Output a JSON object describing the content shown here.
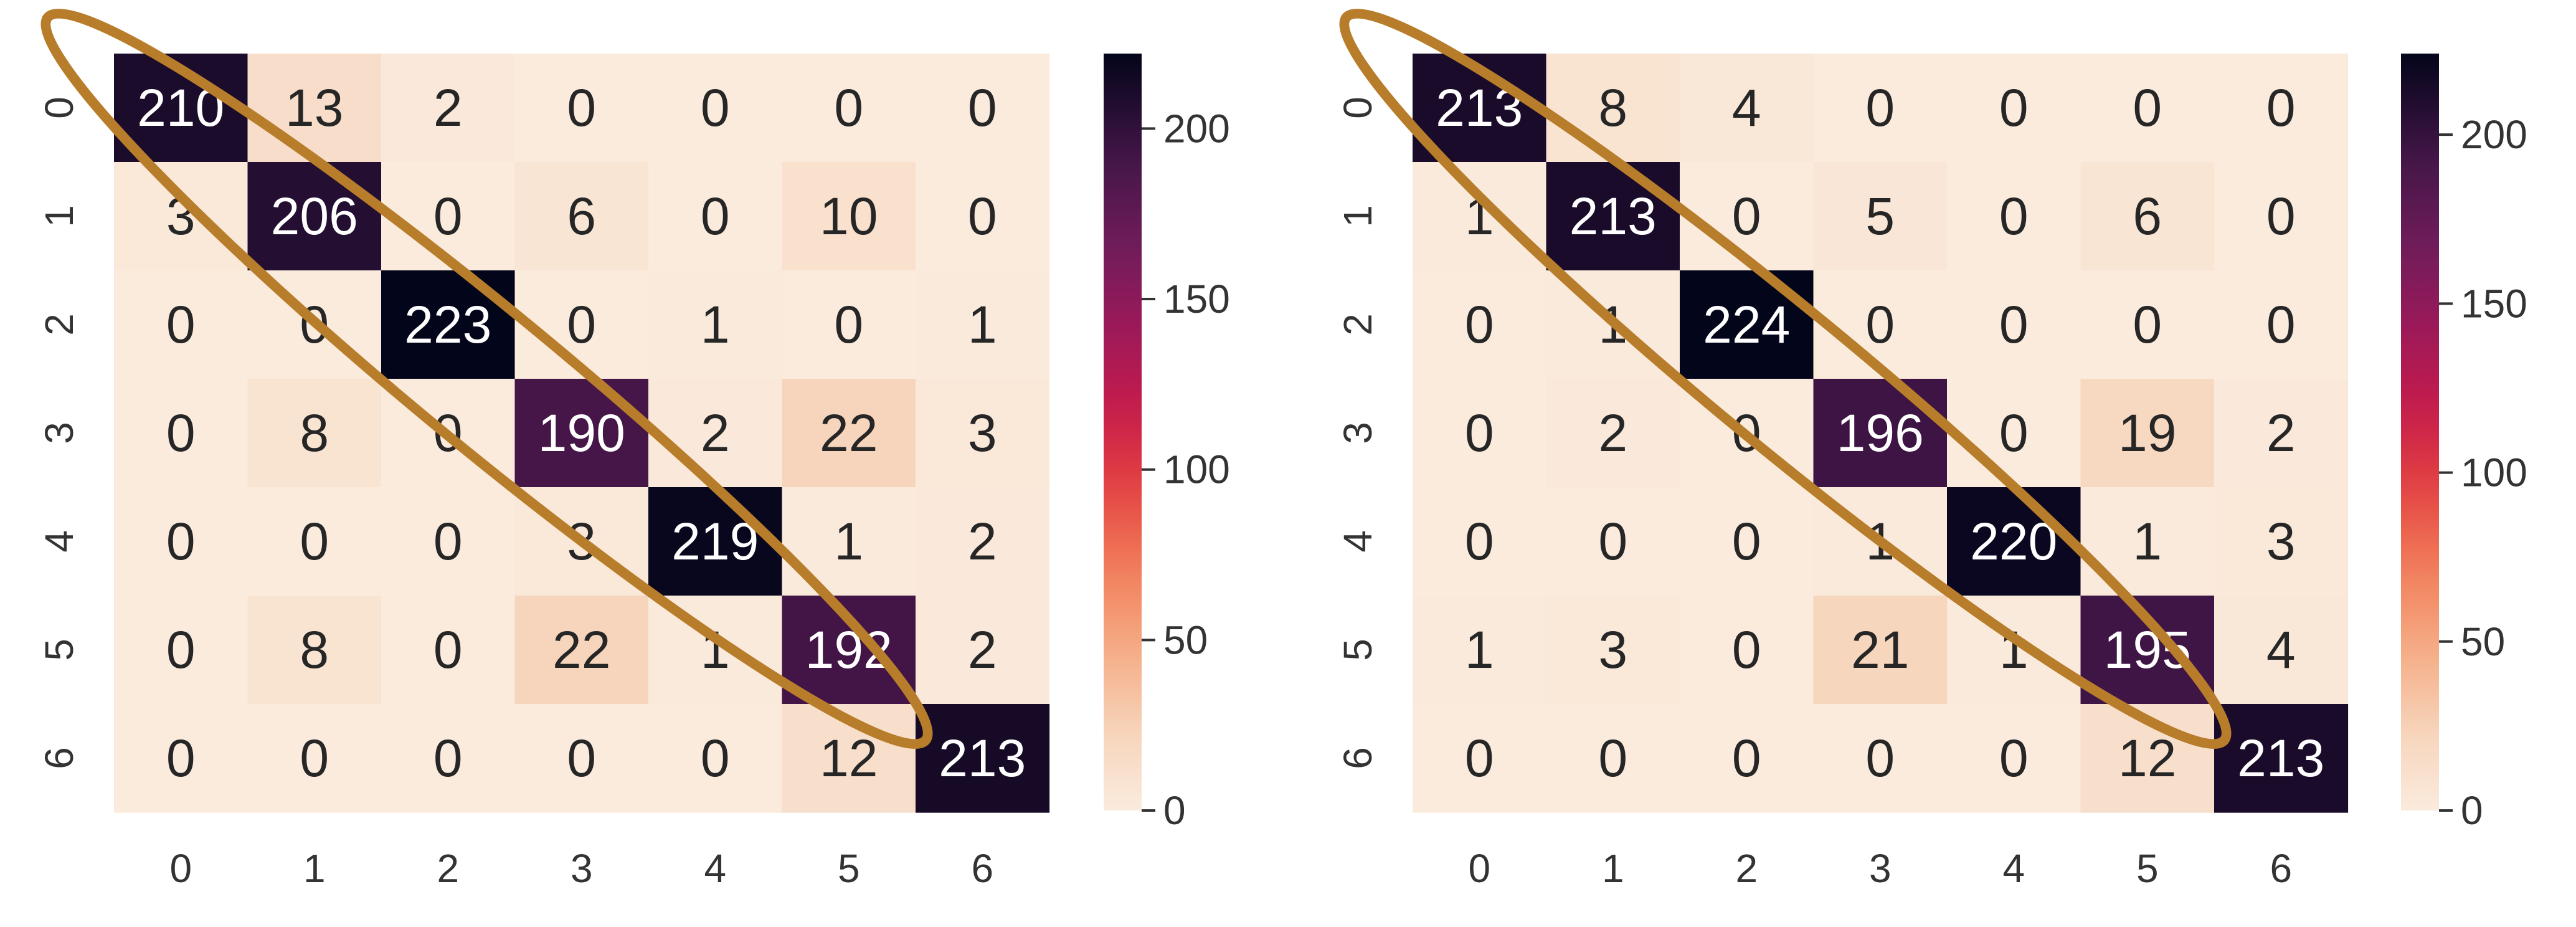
{
  "figure": {
    "annotation_color": "#b87d2b"
  },
  "chart_data": [
    {
      "type": "heatmap",
      "title": "",
      "xlabel": "",
      "ylabel": "",
      "x_ticks": [
        "0",
        "1",
        "2",
        "3",
        "4",
        "5",
        "6"
      ],
      "y_ticks": [
        "0",
        "1",
        "2",
        "3",
        "4",
        "5",
        "6"
      ],
      "values": [
        [
          210,
          13,
          2,
          0,
          0,
          0,
          0
        ],
        [
          3,
          206,
          0,
          6,
          0,
          10,
          0
        ],
        [
          0,
          0,
          223,
          0,
          1,
          0,
          1
        ],
        [
          0,
          8,
          0,
          190,
          2,
          22,
          3
        ],
        [
          0,
          0,
          0,
          3,
          219,
          1,
          2
        ],
        [
          0,
          8,
          0,
          22,
          1,
          192,
          2
        ],
        [
          0,
          0,
          0,
          0,
          0,
          12,
          213
        ]
      ],
      "colorbar": {
        "range": [
          0,
          222
        ],
        "ticks": [
          0,
          50,
          100,
          150,
          200
        ],
        "tick_labels": [
          "0",
          "50",
          "100",
          "150",
          "200"
        ],
        "colormap": "rocket_r"
      },
      "annotation": "ellipse around main diagonal",
      "grid": false
    },
    {
      "type": "heatmap",
      "title": "",
      "xlabel": "",
      "ylabel": "",
      "x_ticks": [
        "0",
        "1",
        "2",
        "3",
        "4",
        "5",
        "6"
      ],
      "y_ticks": [
        "0",
        "1",
        "2",
        "3",
        "4",
        "5",
        "6"
      ],
      "values": [
        [
          213,
          8,
          4,
          0,
          0,
          0,
          0
        ],
        [
          1,
          213,
          0,
          5,
          0,
          6,
          0
        ],
        [
          0,
          1,
          224,
          0,
          0,
          0,
          0
        ],
        [
          0,
          2,
          0,
          196,
          0,
          19,
          2
        ],
        [
          0,
          0,
          0,
          1,
          220,
          1,
          3
        ],
        [
          1,
          3,
          0,
          21,
          1,
          195,
          4
        ],
        [
          0,
          0,
          0,
          0,
          0,
          12,
          213
        ]
      ],
      "colorbar": {
        "range": [
          0,
          224
        ],
        "ticks": [
          0,
          50,
          100,
          150,
          200
        ],
        "tick_labels": [
          "0",
          "50",
          "100",
          "150",
          "200"
        ],
        "colormap": "rocket_r"
      },
      "annotation": "ellipse around main diagonal",
      "grid": false
    }
  ]
}
